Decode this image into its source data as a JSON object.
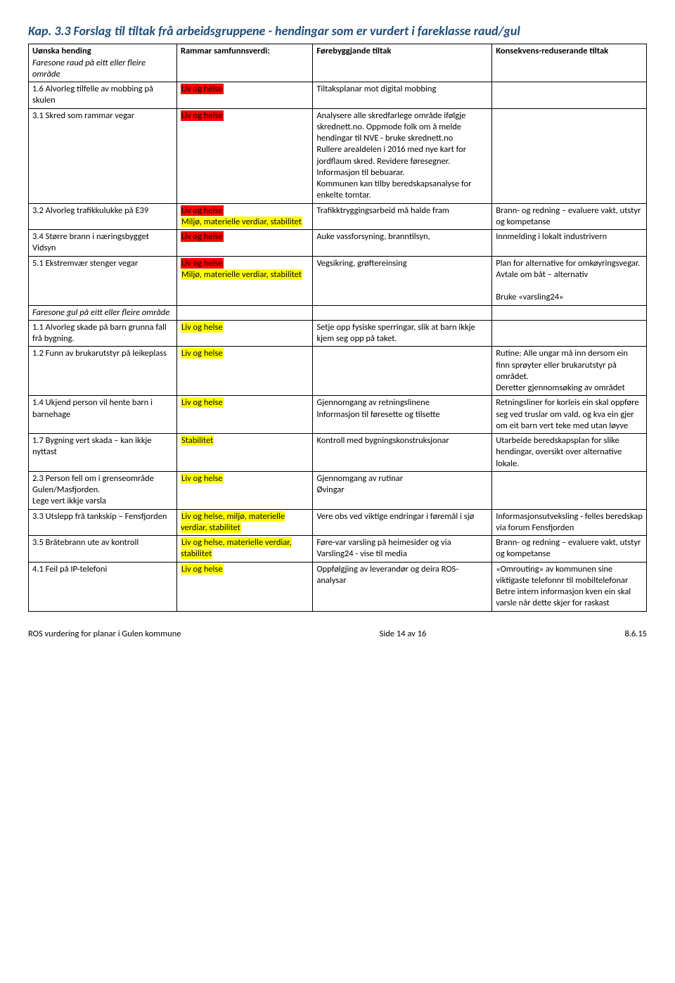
{
  "chapter_title": "Kap. 3.3  Forslag til tiltak frå arbeidsgruppene - hendingar som er vurdert i fareklasse raud/gul",
  "colors": {
    "heading": "#1f4e79",
    "hl_red": "#ff0000",
    "hl_yellow": "#ffff00",
    "border": "#000000",
    "bg": "#ffffff"
  },
  "header": {
    "c1_main": "Uønska hending",
    "c1_sub": "Faresone raud på eitt eller fleire område",
    "c2_main": "Rammar samfunnsverdi:",
    "c3_main": "Førebyggjande tiltak",
    "c4_main": "Konsekvens-reduserande tiltak"
  },
  "rows": [
    {
      "c1": "1.6 Alvorleg tilfelle av mobbing på skulen",
      "c2": [
        {
          "t": "Liv og helse",
          "cls": "hl-red"
        }
      ],
      "c3": "Tiltaksplanar mot digital mobbing",
      "c4": ""
    },
    {
      "c1": "3.1 Skred som rammar vegar",
      "c2": [
        {
          "t": "Liv og helse",
          "cls": "hl-red"
        }
      ],
      "c3": "Analysere alle skredfarlege område ifølgje skrednett.no. Oppmode folk om å melde hendingar til NVE - bruke skrednett.no\nRullere arealdelen i 2016 med nye kart for jordflaum skred. Revidere føresegner.\nInformasjon til bebuarar.\nKommunen kan tilby beredskapsanalyse for enkelte tomtar.",
      "c4": ""
    },
    {
      "c1": "3.2 Alvorleg trafikkulukke på E39",
      "c2": [
        {
          "t": "Liv og helse",
          "cls": "hl-red"
        },
        {
          "t": "Miljø, materielle verdiar, stabilitet",
          "cls": "hl-yellow"
        }
      ],
      "c3": "Trafikktryggingsarbeid må halde fram",
      "c4": "Brann- og redning – evaluere vakt, utstyr og kompetanse"
    },
    {
      "c1": "3.4 Større brann i næringsbygget Vidsyn",
      "c2": [
        {
          "t": "Liv og helse",
          "cls": "hl-red"
        }
      ],
      "c3": "Auke vassforsyning, branntilsyn,",
      "c4": "Innmelding i lokalt industrivern"
    },
    {
      "c1": "5.1 Ekstremvær stenger vegar",
      "c2": [
        {
          "t": "Liv og helse",
          "cls": "hl-red"
        },
        {
          "t": "Miljø, materielle verdiar, stabilitet",
          "cls": "hl-yellow"
        }
      ],
      "c3": "Vegsikring, grøftereinsing",
      "c4": "Plan for alternative for omkøyringsvegar.\nAvtale om båt – alternativ\n\nBruke  «varsling24»"
    },
    {
      "c1": "Faresone gul på eitt eller fleire område",
      "c1_italic": true,
      "c2": [],
      "c3": "",
      "c4": ""
    },
    {
      "c1": "1.1 Alvorleg skade på barn grunna fall frå bygning.",
      "c2": [
        {
          "t": "Liv og helse",
          "cls": "hl-yellow"
        }
      ],
      "c3": "Setje opp fysiske sperringar, slik at barn ikkje kjem seg opp på taket.",
      "c4": ""
    },
    {
      "c1": "1.2 Funn av brukarutstyr på leikeplass",
      "c2": [
        {
          "t": "Liv og helse",
          "cls": "hl-yellow"
        }
      ],
      "c3": "",
      "c4": "Rutine: Alle ungar må inn dersom ein finn sprøyter eller brukarutstyr på området.\nDeretter gjennomsøking av området"
    },
    {
      "c1": "1.4  Ukjend person vil hente barn i barnehage",
      "c2": [
        {
          "t": "Liv og helse",
          "cls": "hl-yellow"
        }
      ],
      "c3": "Gjennomgang av retningslinene\nInformasjon til føresette og tilsette",
      "c4": "Retningsliner for korleis ein skal oppføre seg ved truslar om vald, og kva ein gjer om eit barn vert teke med utan løyve"
    },
    {
      "c1": "1.7 Bygning vert skada – kan ikkje nyttast",
      "c2": [
        {
          "t": "Stabilitet",
          "cls": "hl-yellow"
        }
      ],
      "c3": "Kontroll med bygningskonstruksjonar",
      "c4": "Utarbeide beredskapsplan for slike hendingar, oversikt over alternative lokale."
    },
    {
      "c1": "2.3 Person fell om i grenseområde Gulen/Masfjorden.\nLege vert ikkje varsla",
      "c2": [
        {
          "t": "Liv og helse",
          "cls": "hl-yellow"
        }
      ],
      "c3": "Gjennomgang av rutinar\nØvingar",
      "c4": ""
    },
    {
      "c1": "3.3 Utslepp frå tankskip – Fensfjorden",
      "c2": [
        {
          "t": "Liv og helse, miljø, materielle verdiar, stabilitet",
          "cls": "hl-yellow"
        }
      ],
      "c3": "Vere obs ved viktige endringar i føremål i sjø",
      "c4": "Informasjonsutveksling - felles beredskap via forum Fensfjorden"
    },
    {
      "c1": "3.5 Bråtebrann ute av kontroll",
      "c2": [
        {
          "t": "Liv og helse, materielle verdiar, stabilitet",
          "cls": "hl-yellow"
        }
      ],
      "c3": "Føre-var varsling på heimesider og via Varsling24 - vise til media",
      "c4": "Brann- og redning – evaluere vakt, utstyr og kompetanse"
    },
    {
      "c1": "4.1 Feil på IP-telefoni",
      "c2": [
        {
          "t": "Liv og helse",
          "cls": "hl-yellow"
        }
      ],
      "c3": "Oppfølgjing av leverandør og deira ROS-analysar",
      "c4": "«Omrouting» av kommunen sine viktigaste telefonnr til mobiltelefonar\nBetre intern informasjon kven ein skal varsle når dette skjer for raskast"
    }
  ],
  "footer": {
    "left": "ROS vurdering for planar i Gulen kommune",
    "center": "Side 14 av 16",
    "right": "8.6.15"
  }
}
